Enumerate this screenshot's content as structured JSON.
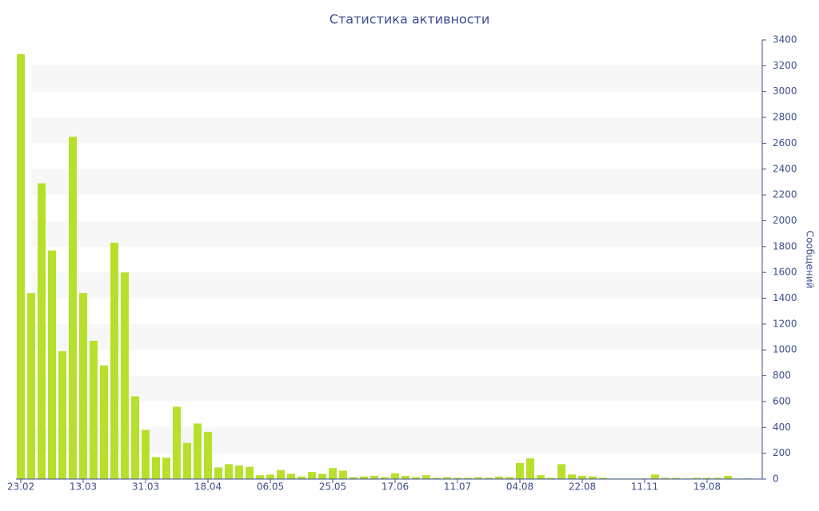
{
  "chart_data": {
    "type": "bar",
    "title": "Статистика активности",
    "y_label": "Сообщений",
    "categories": [
      "23.02",
      null,
      null,
      null,
      null,
      null,
      "13.03",
      null,
      null,
      null,
      null,
      null,
      "31.03",
      null,
      null,
      null,
      null,
      null,
      "18.04",
      null,
      null,
      null,
      null,
      null,
      "06.05",
      null,
      null,
      null,
      null,
      null,
      "25.05",
      null,
      null,
      null,
      null,
      null,
      "17.06",
      null,
      null,
      null,
      null,
      null,
      "11.07",
      null,
      null,
      null,
      null,
      null,
      "04.08",
      null,
      null,
      null,
      null,
      null,
      "22.08",
      null,
      null,
      null,
      null,
      null,
      "11.11",
      null,
      null,
      null,
      null,
      null,
      "19.08",
      null,
      null,
      null,
      null
    ],
    "values": [
      3290,
      1440,
      2290,
      1770,
      990,
      2650,
      1440,
      1070,
      880,
      1830,
      1600,
      640,
      380,
      170,
      165,
      560,
      280,
      430,
      365,
      90,
      115,
      105,
      95,
      30,
      35,
      70,
      40,
      20,
      55,
      40,
      85,
      65,
      15,
      20,
      25,
      15,
      45,
      25,
      15,
      30,
      10,
      15,
      10,
      10,
      15,
      10,
      20,
      15,
      125,
      160,
      30,
      10,
      115,
      35,
      25,
      20,
      10,
      5,
      5,
      5,
      5,
      35,
      10,
      10,
      5,
      10,
      10,
      10,
      25,
      5,
      5
    ],
    "color": "#b7e02c",
    "ylim": [
      0,
      3400
    ],
    "yticks": [
      0,
      200,
      400,
      600,
      800,
      1000,
      1200,
      1400,
      1600,
      1800,
      2000,
      2200,
      2400,
      2600,
      2800,
      3000,
      3200,
      3400
    ],
    "grid": true
  }
}
